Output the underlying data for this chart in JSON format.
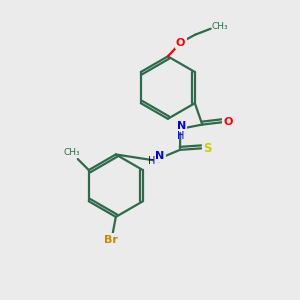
{
  "background_color": "#ebebeb",
  "bond_color": "#2d6b4a",
  "atom_colors": {
    "O": "#ff0000",
    "N": "#0000ee",
    "S": "#cccc00",
    "Br": "#cc8800",
    "C": "#2d6b4a",
    "H": "#2d6b4a"
  },
  "figsize": [
    3.0,
    3.0
  ],
  "dpi": 100
}
